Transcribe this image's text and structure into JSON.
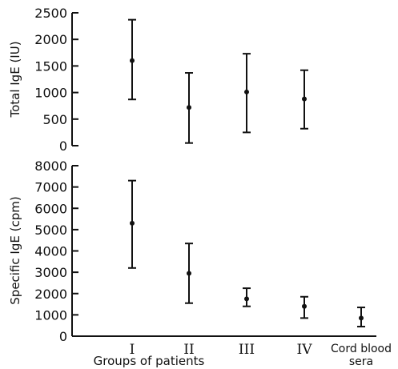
{
  "chart_data": [
    {
      "type": "scatter",
      "title": "",
      "ylabel": "Total IgE (IU)",
      "xlabel": "",
      "ylim": [
        0,
        2500
      ],
      "yticks": [
        0,
        500,
        1000,
        1500,
        2000,
        2500
      ],
      "ytick_labels": [
        "0",
        "500",
        "1000",
        "1500",
        "2000",
        "2500"
      ],
      "categories": [
        "I",
        "II",
        "III",
        "IV"
      ],
      "points": [
        {
          "category": "I",
          "y": 1600,
          "low": 870,
          "high": 2370
        },
        {
          "category": "II",
          "y": 720,
          "low": 50,
          "high": 1370
        },
        {
          "category": "III",
          "y": 1010,
          "low": 250,
          "high": 1730
        },
        {
          "category": "IV",
          "y": 880,
          "low": 320,
          "high": 1420
        }
      ]
    },
    {
      "type": "scatter",
      "title": "",
      "ylabel": "Specific IgE (cpm)",
      "xlabel": "Groups of patients",
      "ylim": [
        0,
        8000
      ],
      "yticks": [
        0,
        1000,
        2000,
        3000,
        4000,
        5000,
        6000,
        7000,
        8000
      ],
      "ytick_labels": [
        "0",
        "1000",
        "2000",
        "3000",
        "4000",
        "5000",
        "6000",
        "7000",
        "8000"
      ],
      "categories": [
        "I",
        "II",
        "III",
        "IV",
        "Cord blood sera"
      ],
      "category_lines": [
        [
          "I"
        ],
        [
          "II"
        ],
        [
          "III"
        ],
        [
          "IV"
        ],
        [
          "Cord blood",
          "sera"
        ]
      ],
      "points": [
        {
          "category": "I",
          "y": 5300,
          "low": 3200,
          "high": 7300
        },
        {
          "category": "II",
          "y": 2950,
          "low": 1550,
          "high": 4350
        },
        {
          "category": "III",
          "y": 1750,
          "low": 1400,
          "high": 2250
        },
        {
          "category": "IV",
          "y": 1400,
          "low": 850,
          "high": 1850
        },
        {
          "category": "Cord blood sera",
          "y": 850,
          "low": 450,
          "high": 1350
        }
      ]
    }
  ]
}
